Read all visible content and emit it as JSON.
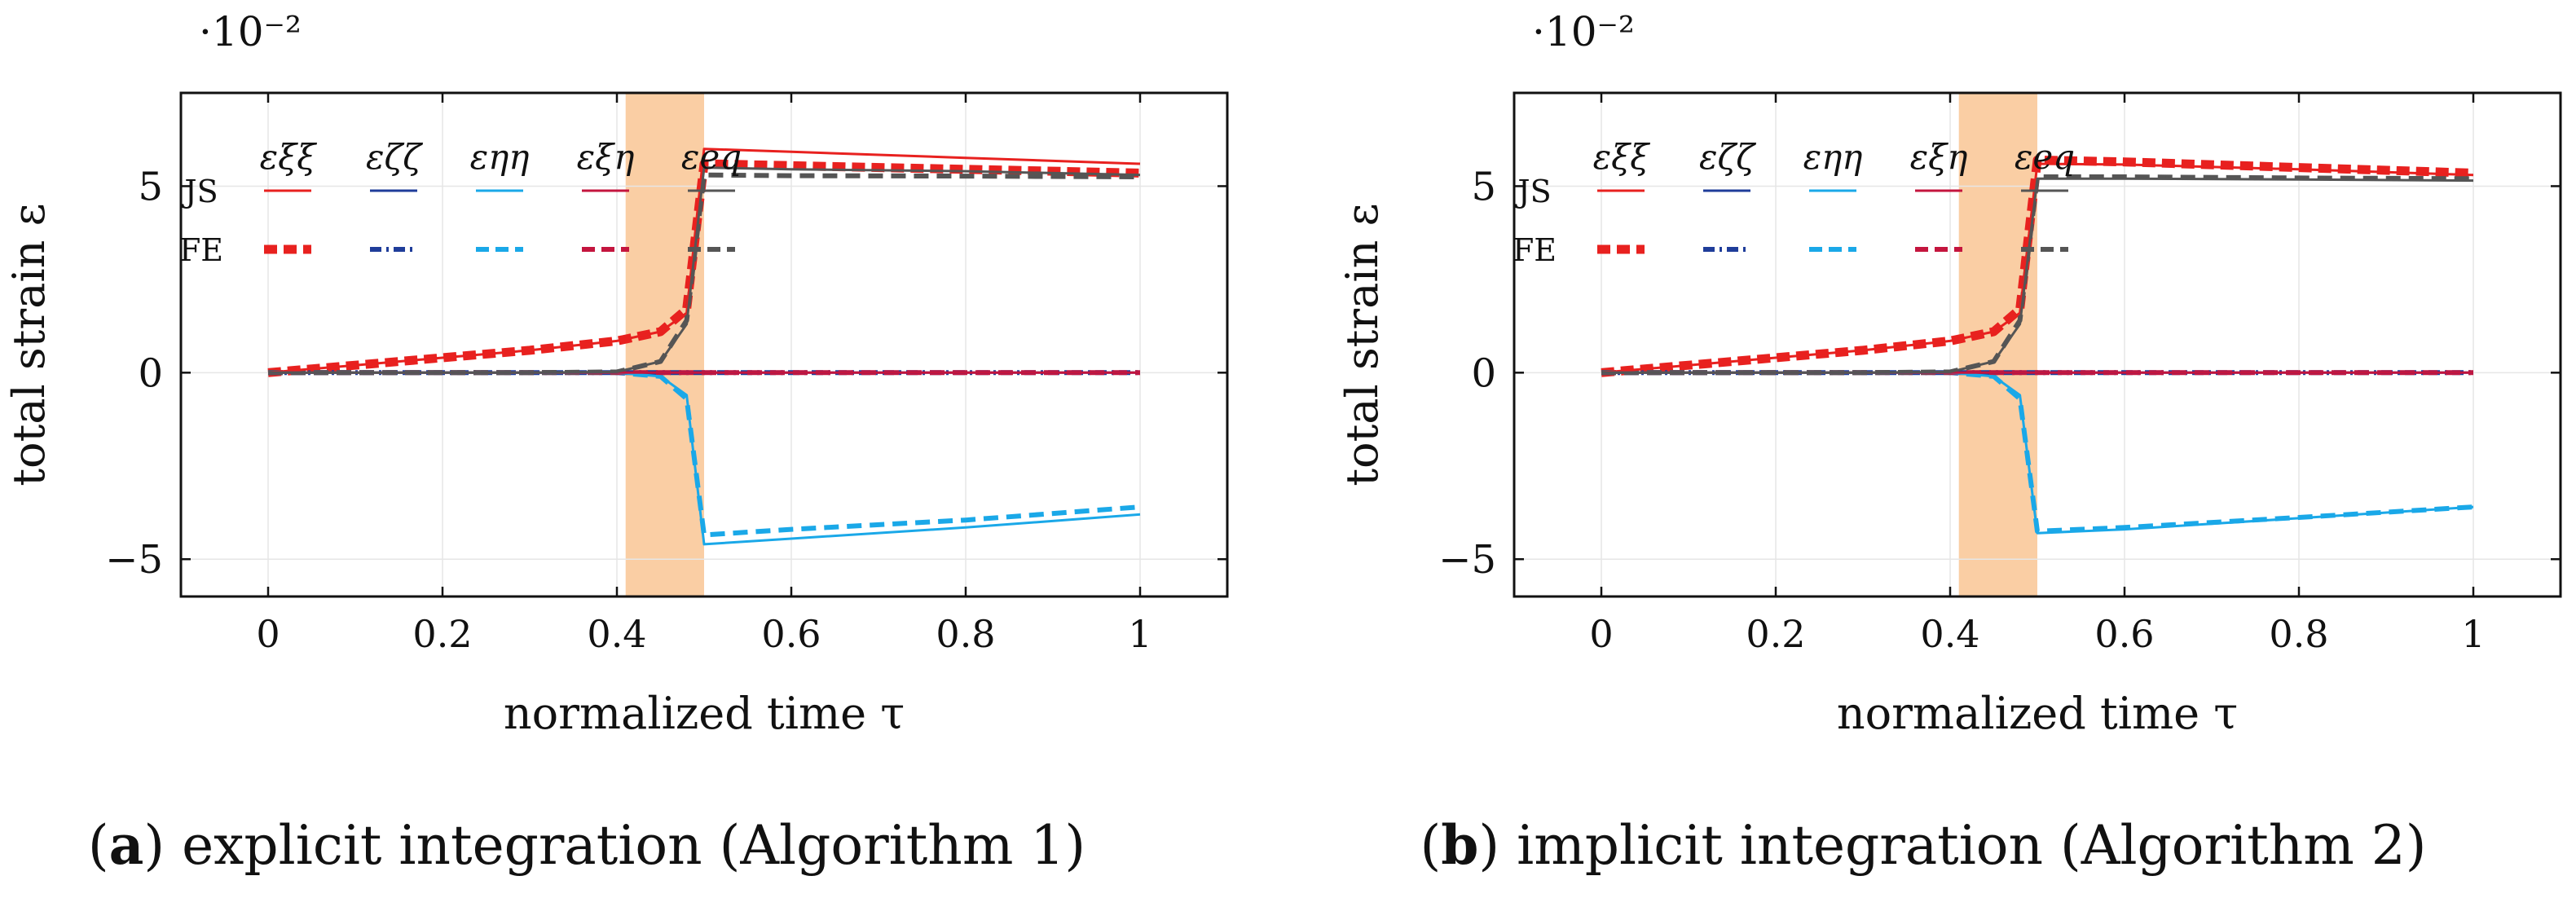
{
  "figure": {
    "panels": [
      {
        "label": "a",
        "caption": " explicit integration (Algorithm 1)"
      },
      {
        "label": "b",
        "caption": " implicit integration (Algorithm 2)"
      }
    ]
  },
  "chart_data": [
    {
      "type": "line",
      "title": "",
      "xlabel": "normalized time τ",
      "ylabel": "total strain ε",
      "scale_label": "·10⁻²",
      "xlim": [
        -0.1,
        1.1
      ],
      "ylim": [
        -6,
        7.5
      ],
      "xticks": [
        0,
        0.2,
        0.4,
        0.6,
        0.8,
        1
      ],
      "xtick_labels": [
        "0",
        "0.2",
        "0.4",
        "0.6",
        "0.8",
        "1"
      ],
      "yticks": [
        -5,
        0,
        5
      ],
      "ytick_labels": [
        "−5",
        "0",
        "5"
      ],
      "shaded_region": {
        "x": [
          0.41,
          0.5
        ],
        "color": "#f5a55a"
      },
      "legend": {
        "columns": [
          "εξξ",
          "εζζ",
          "εηη",
          "εξη",
          "εeq"
        ],
        "rows": [
          "JS",
          "FE"
        ],
        "colors": [
          "#e8211f",
          "#1f3d9a",
          "#1aa8e8",
          "#c4153e",
          "#555555"
        ]
      },
      "series": [
        {
          "name": "JS εξξ",
          "method": "JS",
          "color": "#e8211f",
          "x": [
            0,
            0.1,
            0.2,
            0.3,
            0.4,
            0.45,
            0.48,
            0.5,
            0.6,
            0.8,
            1
          ],
          "y": [
            0,
            0.2,
            0.4,
            0.6,
            0.85,
            1.1,
            1.6,
            6,
            5.92,
            5.76,
            5.6
          ]
        },
        {
          "name": "JS εζζ",
          "method": "JS",
          "color": "#1f3d9a",
          "x": [
            0,
            1
          ],
          "y": [
            0,
            0
          ]
        },
        {
          "name": "JS εηη",
          "method": "JS",
          "color": "#1aa8e8",
          "x": [
            0,
            0.1,
            0.2,
            0.3,
            0.4,
            0.45,
            0.48,
            0.5,
            0.6,
            0.8,
            1
          ],
          "y": [
            0,
            0,
            0,
            0,
            0,
            -0.1,
            -0.6,
            -4.6,
            -4.45,
            -4.15,
            -3.8
          ]
        },
        {
          "name": "JS εξη",
          "method": "JS",
          "color": "#c4153e",
          "x": [
            0,
            1
          ],
          "y": [
            0,
            0
          ]
        },
        {
          "name": "JS εeq",
          "method": "JS",
          "color": "#555555",
          "x": [
            0,
            0.1,
            0.2,
            0.3,
            0.4,
            0.45,
            0.48,
            0.5,
            0.6,
            0.8,
            1
          ],
          "y": [
            0,
            0,
            0,
            0,
            0.02,
            0.3,
            1.3,
            5.5,
            5.45,
            5.4,
            5.3
          ]
        },
        {
          "name": "FE εξξ",
          "method": "FE",
          "color": "#e8211f",
          "x": [
            0,
            0.1,
            0.2,
            0.3,
            0.4,
            0.45,
            0.48,
            0.5,
            0.6,
            0.8,
            1
          ],
          "y": [
            0,
            0.2,
            0.4,
            0.6,
            0.85,
            1.1,
            1.7,
            5.6,
            5.55,
            5.45,
            5.35
          ]
        },
        {
          "name": "FE εζζ",
          "method": "FE",
          "color": "#1f3d9a",
          "x": [
            0,
            1
          ],
          "y": [
            0,
            0
          ]
        },
        {
          "name": "FE εηη",
          "method": "FE",
          "color": "#1aa8e8",
          "x": [
            0,
            0.1,
            0.2,
            0.3,
            0.4,
            0.45,
            0.48,
            0.5,
            0.6,
            0.8,
            1
          ],
          "y": [
            0,
            0,
            0,
            0,
            0,
            -0.1,
            -0.7,
            -4.35,
            -4.2,
            -3.95,
            -3.6
          ]
        },
        {
          "name": "FE εξη",
          "method": "FE",
          "color": "#c4153e",
          "x": [
            0,
            1
          ],
          "y": [
            0,
            0
          ]
        },
        {
          "name": "FE εeq",
          "method": "FE",
          "color": "#555555",
          "x": [
            0,
            0.1,
            0.2,
            0.3,
            0.4,
            0.45,
            0.48,
            0.5,
            0.6,
            0.8,
            1
          ],
          "y": [
            0,
            0,
            0,
            0,
            0.02,
            0.3,
            1.4,
            5.3,
            5.28,
            5.27,
            5.25
          ]
        }
      ]
    },
    {
      "type": "line",
      "title": "",
      "xlabel": "normalized time τ",
      "ylabel": "total strain ε",
      "scale_label": "·10⁻²",
      "xlim": [
        -0.1,
        1.1
      ],
      "ylim": [
        -6,
        7.5
      ],
      "xticks": [
        0,
        0.2,
        0.4,
        0.6,
        0.8,
        1
      ],
      "xtick_labels": [
        "0",
        "0.2",
        "0.4",
        "0.6",
        "0.8",
        "1"
      ],
      "yticks": [
        -5,
        0,
        5
      ],
      "ytick_labels": [
        "−5",
        "0",
        "5"
      ],
      "shaded_region": {
        "x": [
          0.41,
          0.5
        ],
        "color": "#f5a55a"
      },
      "legend": {
        "columns": [
          "εξξ",
          "εζζ",
          "εηη",
          "εξη",
          "εeq"
        ],
        "rows": [
          "JS",
          "FE"
        ],
        "colors": [
          "#e8211f",
          "#1f3d9a",
          "#1aa8e8",
          "#c4153e",
          "#555555"
        ]
      },
      "series": [
        {
          "name": "JS εξξ",
          "method": "JS",
          "color": "#e8211f",
          "x": [
            0,
            0.1,
            0.2,
            0.3,
            0.4,
            0.45,
            0.48,
            0.5,
            0.6,
            0.8,
            1
          ],
          "y": [
            0,
            0.2,
            0.4,
            0.6,
            0.85,
            1.1,
            1.6,
            5.6,
            5.58,
            5.45,
            5.3
          ]
        },
        {
          "name": "JS εζζ",
          "method": "JS",
          "color": "#1f3d9a",
          "x": [
            0,
            1
          ],
          "y": [
            0,
            0
          ]
        },
        {
          "name": "JS εηη",
          "method": "JS",
          "color": "#1aa8e8",
          "x": [
            0,
            0.1,
            0.2,
            0.3,
            0.4,
            0.45,
            0.48,
            0.5,
            0.6,
            0.8,
            1
          ],
          "y": [
            0,
            0,
            0,
            0,
            0,
            -0.1,
            -0.6,
            -4.3,
            -4.2,
            -3.9,
            -3.6
          ]
        },
        {
          "name": "JS εξη",
          "method": "JS",
          "color": "#c4153e",
          "x": [
            0,
            1
          ],
          "y": [
            0,
            0
          ]
        },
        {
          "name": "JS εeq",
          "method": "JS",
          "color": "#555555",
          "x": [
            0,
            0.1,
            0.2,
            0.3,
            0.4,
            0.45,
            0.48,
            0.5,
            0.6,
            0.8,
            1
          ],
          "y": [
            0,
            0,
            0,
            0,
            0.02,
            0.3,
            1.3,
            5.2,
            5.2,
            5.18,
            5.15
          ]
        },
        {
          "name": "FE εξξ",
          "method": "FE",
          "color": "#e8211f",
          "x": [
            0,
            0.1,
            0.2,
            0.3,
            0.4,
            0.45,
            0.48,
            0.5,
            0.6,
            0.8,
            1
          ],
          "y": [
            0,
            0.2,
            0.4,
            0.6,
            0.85,
            1.1,
            1.7,
            5.7,
            5.65,
            5.5,
            5.35
          ]
        },
        {
          "name": "FE εζζ",
          "method": "FE",
          "color": "#1f3d9a",
          "x": [
            0,
            1
          ],
          "y": [
            0,
            0
          ]
        },
        {
          "name": "FE εηη",
          "method": "FE",
          "color": "#1aa8e8",
          "x": [
            0,
            0.1,
            0.2,
            0.3,
            0.4,
            0.45,
            0.48,
            0.5,
            0.6,
            0.8,
            1
          ],
          "y": [
            0,
            0,
            0,
            0,
            0,
            -0.1,
            -0.7,
            -4.25,
            -4.15,
            -3.88,
            -3.6
          ]
        },
        {
          "name": "FE εξη",
          "method": "FE",
          "color": "#c4153e",
          "x": [
            0,
            1
          ],
          "y": [
            0,
            0
          ]
        },
        {
          "name": "FE εeq",
          "method": "FE",
          "color": "#555555",
          "x": [
            0,
            0.1,
            0.2,
            0.3,
            0.4,
            0.45,
            0.48,
            0.5,
            0.6,
            0.8,
            1
          ],
          "y": [
            0,
            0,
            0,
            0,
            0.02,
            0.3,
            1.4,
            5.25,
            5.25,
            5.22,
            5.2
          ]
        }
      ]
    }
  ]
}
